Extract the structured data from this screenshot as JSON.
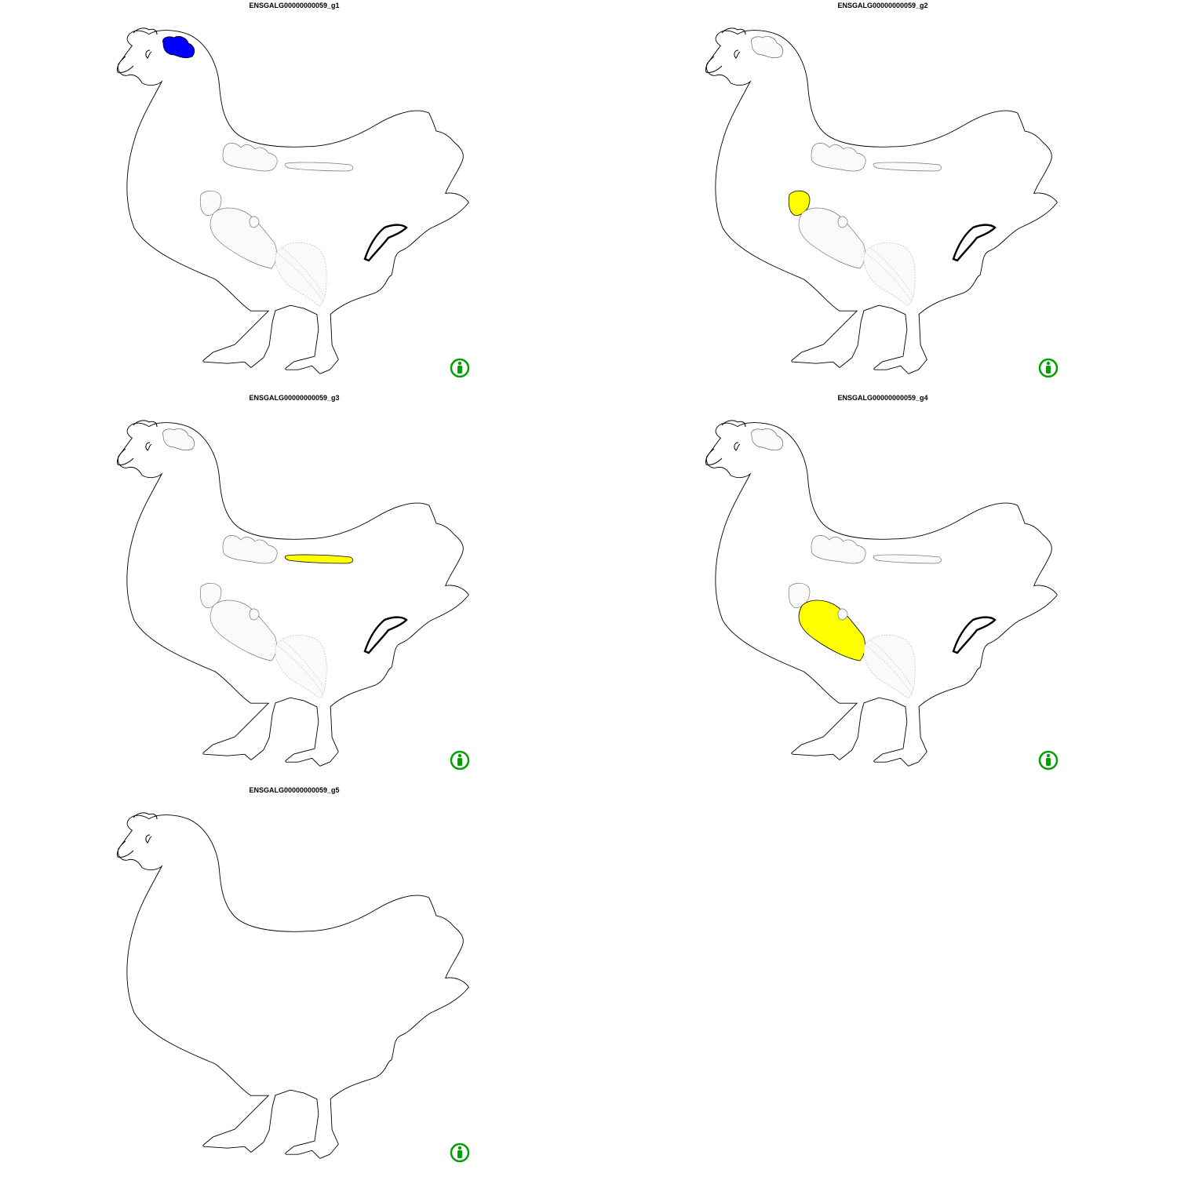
{
  "figure": {
    "panels": [
      {
        "title": "ENSGALG00000000059_g1",
        "show_organs": true,
        "highlight": {
          "brain": "#0000ff"
        }
      },
      {
        "title": "ENSGALG00000000059_g2",
        "show_organs": true,
        "highlight": {
          "heart": "#ffff00"
        }
      },
      {
        "title": "ENSGALG00000000059_g3",
        "show_organs": true,
        "highlight": {
          "spinal-cord": "#ffff00"
        }
      },
      {
        "title": "ENSGALG00000000059_g4",
        "show_organs": true,
        "highlight": {
          "liver": "#ffff00"
        }
      },
      {
        "title": "ENSGALG00000000059_g5",
        "show_organs": false,
        "highlight": {}
      }
    ],
    "organs": [
      "brain",
      "kidney",
      "spinal-cord",
      "heart",
      "liver",
      "gizzard",
      "intestine",
      "gland"
    ],
    "colors": {
      "outline": "#000000",
      "organ_fill": "#fcf9f9",
      "organ_stroke": "#888888",
      "info_icon": "#00a000"
    },
    "icons": {
      "info": "info-person-icon"
    }
  }
}
